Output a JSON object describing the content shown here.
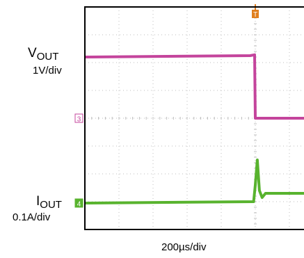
{
  "chart_data": {
    "type": "line",
    "x_scale_label": "200µs/div",
    "colors": {
      "vout": "#c4449c",
      "iout": "#58b32e",
      "trigger": "#e07f1e",
      "grid": "#bdbdbd",
      "frame": "#000000"
    },
    "series": [
      {
        "id": "vout",
        "name_main": "V",
        "name_sub": "OUT",
        "scale": "1V/div",
        "marker": "3",
        "points_div": [
          [
            0,
            6.2
          ],
          [
            4.85,
            6.25
          ],
          [
            4.98,
            6.28
          ],
          [
            5.0,
            4.0
          ],
          [
            8.0,
            4.0
          ]
        ]
      },
      {
        "id": "iout",
        "name_main": "I",
        "name_sub": "OUT",
        "scale": "0.1A/div",
        "marker": "4",
        "points_div": [
          [
            0,
            0.95
          ],
          [
            4.95,
            1.0
          ],
          [
            5.0,
            1.6
          ],
          [
            5.06,
            2.5
          ],
          [
            5.12,
            1.4
          ],
          [
            5.2,
            1.15
          ],
          [
            5.3,
            1.3
          ],
          [
            8.0,
            1.3
          ]
        ]
      }
    ],
    "trigger_marker": "T",
    "grid": true
  }
}
